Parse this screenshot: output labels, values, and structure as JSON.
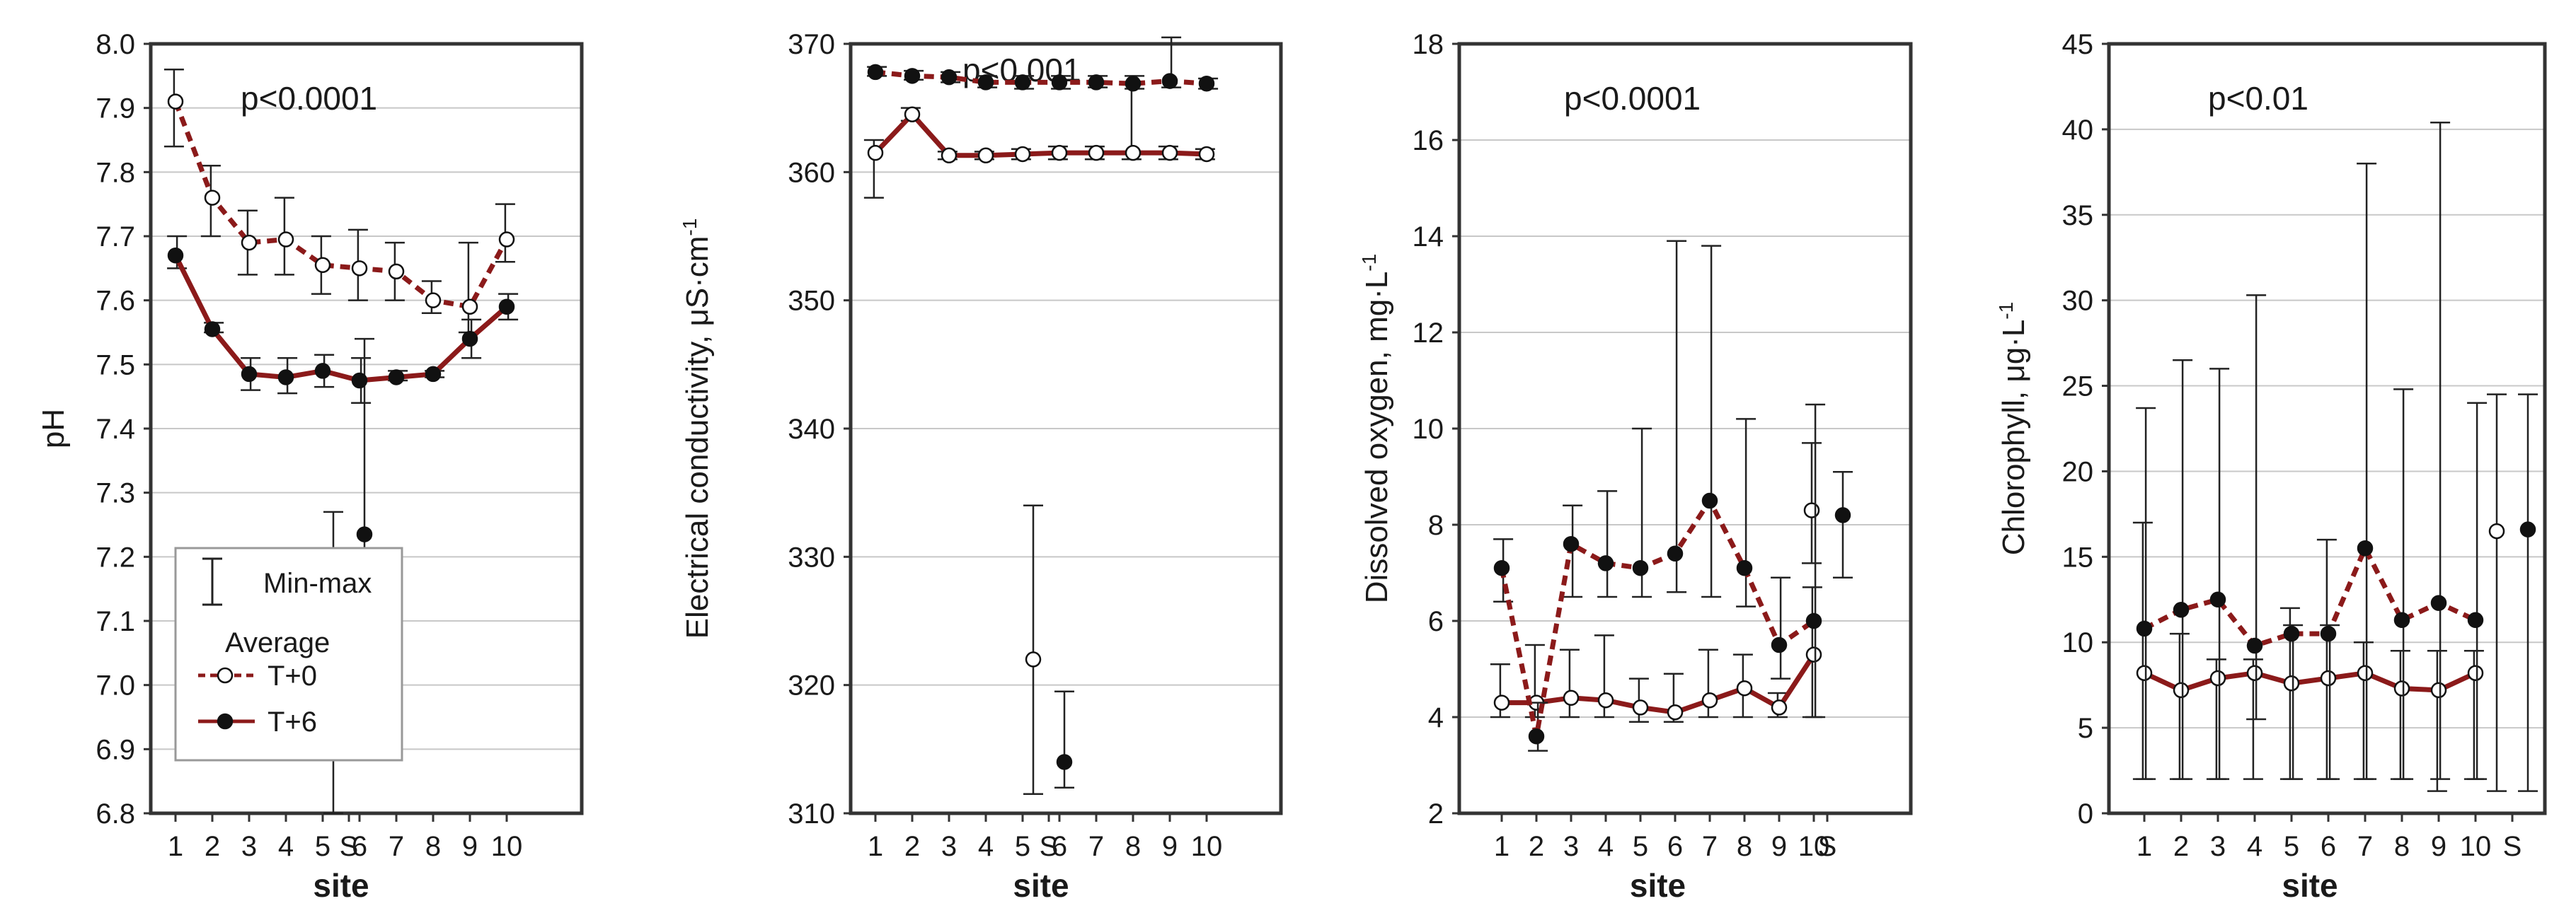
{
  "colors": {
    "line": "#8b1a1a",
    "grid": "#c8c8c8",
    "frame": "#333333",
    "marker_open": "#ffffff",
    "marker_filled": "#111111"
  },
  "legend": {
    "minmax": "Min-max",
    "average": "Average",
    "t0": "T+0",
    "t6": "T+6"
  },
  "chart_data": [
    {
      "type": "line",
      "ylabel": "pH",
      "xlabel": "site",
      "pvalue": "p<0.0001",
      "ylim": [
        6.8,
        8.0
      ],
      "yticks": [
        "6.8",
        "6.9",
        "7.0",
        "7.1",
        "7.2",
        "7.3",
        "7.4",
        "7.5",
        "7.6",
        "7.7",
        "7.8",
        "7.9",
        "8.0"
      ],
      "categories": [
        "1",
        "2",
        "3",
        "4",
        "5",
        "6",
        "7",
        "8",
        "9",
        "10",
        "S"
      ],
      "series": [
        {
          "name": "T+0",
          "values": [
            7.91,
            7.76,
            7.69,
            7.695,
            7.655,
            7.65,
            7.645,
            7.6,
            7.59,
            7.695,
            7.165
          ],
          "min": [
            7.84,
            7.7,
            7.64,
            7.64,
            7.61,
            7.6,
            7.6,
            7.58,
            7.55,
            7.66,
            6.8
          ],
          "max": [
            7.96,
            7.81,
            7.74,
            7.76,
            7.7,
            7.71,
            7.69,
            7.63,
            7.69,
            7.75,
            7.27
          ]
        },
        {
          "name": "T+6",
          "values": [
            7.67,
            7.555,
            7.485,
            7.48,
            7.49,
            7.475,
            7.48,
            7.485,
            7.54,
            7.59,
            7.235
          ],
          "min": [
            7.65,
            7.55,
            7.46,
            7.455,
            7.465,
            7.44,
            7.475,
            7.48,
            7.51,
            7.57,
            7.05
          ],
          "max": [
            7.7,
            7.565,
            7.51,
            7.51,
            7.515,
            7.51,
            7.49,
            7.49,
            7.57,
            7.61,
            7.54
          ]
        }
      ]
    },
    {
      "type": "line",
      "ylabel": "Electrical conductivity,  μS·cm",
      "ylabel_sup": "-1",
      "xlabel": "site",
      "pvalue": "p<0.001",
      "ylim": [
        310,
        370
      ],
      "yticks": [
        "310",
        "320",
        "330",
        "340",
        "350",
        "360",
        "370"
      ],
      "categories": [
        "1",
        "2",
        "3",
        "4",
        "5",
        "6",
        "7",
        "8",
        "9",
        "10",
        "S"
      ],
      "series": [
        {
          "name": "T+0",
          "values": [
            361.5,
            364.5,
            361.3,
            361.3,
            361.4,
            361.5,
            361.5,
            361.5,
            361.5,
            361.4,
            322.0
          ],
          "min": [
            358.0,
            364.0,
            361.0,
            361.0,
            361.0,
            361.0,
            361.0,
            361.0,
            361.0,
            361.0,
            311.5
          ],
          "max": [
            362.5,
            365.0,
            361.6,
            361.6,
            361.8,
            362.0,
            362.0,
            367.0,
            362.0,
            361.8,
            334.0
          ]
        },
        {
          "name": "T+6",
          "values": [
            367.8,
            367.5,
            367.4,
            367.0,
            367.0,
            367.0,
            367.0,
            366.9,
            367.1,
            366.9,
            314.0
          ],
          "min": [
            367.5,
            367.2,
            367.0,
            366.6,
            366.5,
            366.5,
            366.6,
            366.5,
            366.6,
            366.5,
            312.0
          ],
          "max": [
            368.2,
            367.9,
            367.8,
            367.5,
            367.5,
            367.5,
            367.5,
            367.5,
            370.5,
            367.3,
            319.5
          ]
        }
      ]
    },
    {
      "type": "line",
      "ylabel": "Dissolved oxygen,  mg·L",
      "ylabel_sup": "-1",
      "xlabel": "site",
      "pvalue": "p<0.0001",
      "ylim": [
        2,
        18
      ],
      "yticks": [
        "2",
        "4",
        "6",
        "8",
        "10",
        "12",
        "14",
        "16",
        "18"
      ],
      "categories": [
        "1",
        "2",
        "3",
        "4",
        "5",
        "6",
        "7",
        "8",
        "9",
        "10",
        "S"
      ],
      "series": [
        {
          "name": "T+0",
          "values": [
            4.3,
            4.3,
            4.4,
            4.35,
            4.2,
            4.1,
            4.35,
            4.6,
            4.2,
            5.3,
            8.3
          ],
          "min": [
            4.0,
            4.0,
            4.0,
            4.0,
            3.9,
            3.9,
            4.0,
            4.0,
            4.0,
            4.0,
            7.2
          ],
          "max": [
            5.1,
            5.5,
            5.4,
            5.7,
            4.8,
            4.9,
            5.4,
            5.3,
            4.5,
            6.7,
            9.7
          ]
        },
        {
          "name": "T+6",
          "values": [
            7.1,
            3.6,
            7.6,
            7.2,
            7.1,
            7.4,
            8.5,
            7.1,
            5.5,
            6.0,
            8.2
          ],
          "min": [
            6.4,
            3.3,
            6.5,
            6.5,
            6.5,
            6.6,
            6.5,
            6.3,
            4.8,
            4.0,
            6.9
          ],
          "max": [
            7.7,
            4.3,
            8.4,
            8.7,
            10.0,
            13.9,
            13.8,
            10.2,
            6.9,
            10.5,
            9.1
          ]
        }
      ]
    },
    {
      "type": "line",
      "ylabel": "Chlorophyll, μg·L",
      "ylabel_sup": "-1",
      "xlabel": "site",
      "pvalue": "p<0.01",
      "ylim": [
        0,
        45
      ],
      "yticks": [
        "0",
        "5",
        "10",
        "15",
        "20",
        "25",
        "30",
        "35",
        "40",
        "45"
      ],
      "categories": [
        "1",
        "2",
        "3",
        "4",
        "5",
        "6",
        "7",
        "8",
        "9",
        "10",
        "S"
      ],
      "series": [
        {
          "name": "T+0",
          "values": [
            8.2,
            7.2,
            7.9,
            8.2,
            7.6,
            7.9,
            8.2,
            7.3,
            7.2,
            8.2,
            16.5
          ],
          "min": [
            2.0,
            2.0,
            2.0,
            2.0,
            2.0,
            2.0,
            2.0,
            2.0,
            1.3,
            2.0,
            1.3
          ],
          "max": [
            17.0,
            10.5,
            9.0,
            9.0,
            12.0,
            16.0,
            10.0,
            9.5,
            9.5,
            9.5,
            24.5
          ]
        },
        {
          "name": "T+6",
          "values": [
            10.8,
            11.9,
            12.5,
            9.8,
            10.5,
            10.5,
            15.5,
            11.3,
            12.3,
            11.3,
            16.6
          ],
          "min": [
            2.0,
            2.0,
            2.0,
            5.5,
            2.0,
            2.0,
            2.0,
            2.0,
            2.0,
            2.0,
            1.3
          ],
          "max": [
            23.7,
            26.5,
            26.0,
            30.3,
            11.0,
            11.0,
            38.0,
            24.8,
            40.4,
            24.0,
            24.5
          ]
        }
      ]
    }
  ]
}
